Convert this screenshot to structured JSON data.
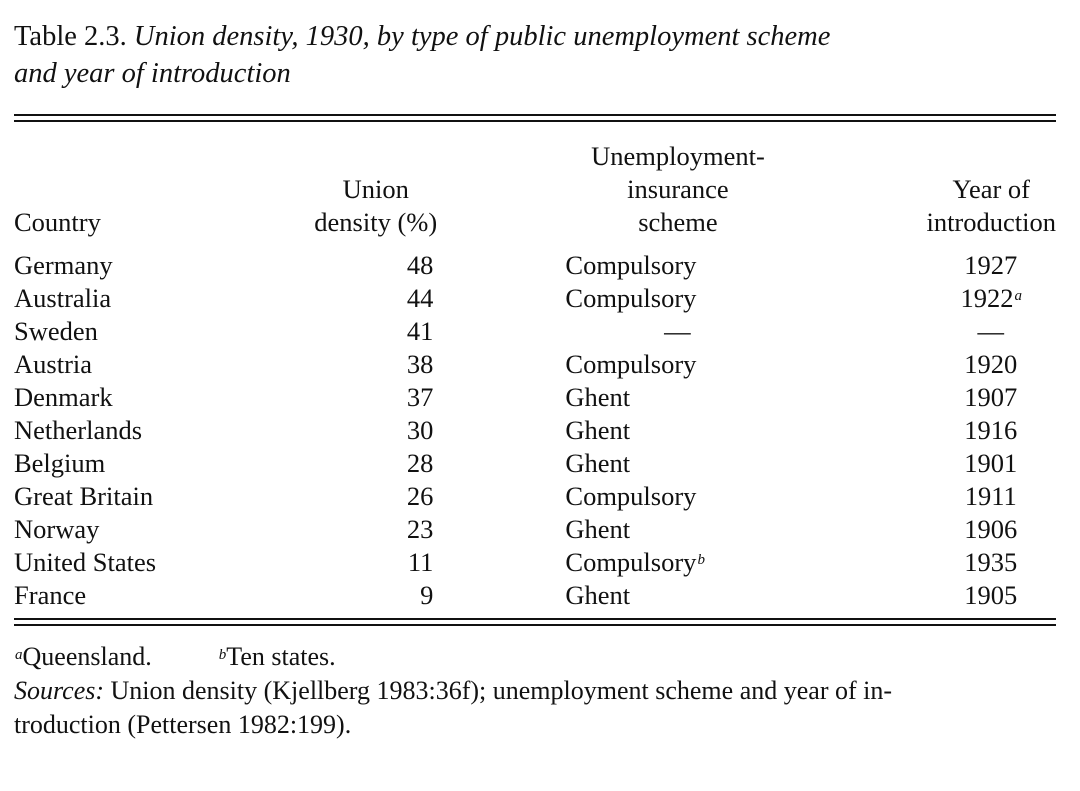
{
  "caption": {
    "label": "Table 2.3.",
    "title_line1": "Union density, 1930, by type of public unemployment scheme",
    "title_line2": "and year of introduction"
  },
  "headers": {
    "country": "Country",
    "density_line1": "Union",
    "density_line2": "density (%)",
    "scheme_line1": "Unemployment-",
    "scheme_line2": "insurance",
    "scheme_line3": "scheme",
    "year_line1": "Year of",
    "year_line2": "introduction"
  },
  "rows": [
    {
      "country": "Germany",
      "density": "48",
      "scheme": "Compulsory",
      "scheme_note": "",
      "year": "1927",
      "year_note": ""
    },
    {
      "country": "Australia",
      "density": "44",
      "scheme": "Compulsory",
      "scheme_note": "",
      "year": "1922",
      "year_note": "a"
    },
    {
      "country": "Sweden",
      "density": "41",
      "scheme": "—",
      "scheme_note": "",
      "year": "—",
      "year_note": ""
    },
    {
      "country": "Austria",
      "density": "38",
      "scheme": "Compulsory",
      "scheme_note": "",
      "year": "1920",
      "year_note": ""
    },
    {
      "country": "Denmark",
      "density": "37",
      "scheme": "Ghent",
      "scheme_note": "",
      "year": "1907",
      "year_note": ""
    },
    {
      "country": "Netherlands",
      "density": "30",
      "scheme": "Ghent",
      "scheme_note": "",
      "year": "1916",
      "year_note": ""
    },
    {
      "country": "Belgium",
      "density": "28",
      "scheme": "Ghent",
      "scheme_note": "",
      "year": "1901",
      "year_note": ""
    },
    {
      "country": "Great Britain",
      "density": "26",
      "scheme": "Compulsory",
      "scheme_note": "",
      "year": "1911",
      "year_note": ""
    },
    {
      "country": "Norway",
      "density": "23",
      "scheme": "Ghent",
      "scheme_note": "",
      "year": "1906",
      "year_note": ""
    },
    {
      "country": "United States",
      "density": "11",
      "scheme": "Compulsory",
      "scheme_note": "b",
      "year": "1935",
      "year_note": ""
    },
    {
      "country": "France",
      "density": "9",
      "scheme": "Ghent",
      "scheme_note": "",
      "year": "1905",
      "year_note": ""
    }
  ],
  "footnotes": {
    "a_mark": "a",
    "a_text": "Queensland.",
    "b_mark": "b",
    "b_text": "Ten states.",
    "sources_label": "Sources:",
    "sources_line1": "Union density (Kjellberg 1983:36f); unemployment scheme and year of in-",
    "sources_line2": "troduction (Pettersen 1982:199)."
  }
}
